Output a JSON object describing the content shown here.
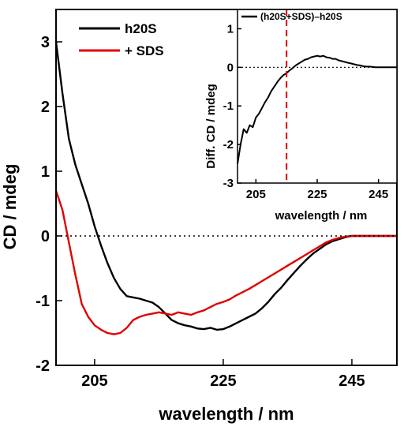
{
  "chart_data": [
    {
      "type": "line",
      "xlabel": "wavelength / nm",
      "ylabel": "CD / mdeg",
      "xlim": [
        199,
        252
      ],
      "ylim": [
        -2,
        3.5
      ],
      "x_ticks": [
        205,
        225,
        245
      ],
      "y_ticks": [
        3,
        2,
        1,
        0,
        -1,
        -2
      ],
      "x_tick_labels": [
        "205",
        "225",
        "245"
      ],
      "y_tick_labels": [
        "3",
        "2",
        "1",
        "0",
        "-1",
        "-2"
      ],
      "reference_line": {
        "y": 0,
        "style": "dotted"
      },
      "legend": {
        "position": "top-left"
      },
      "series": [
        {
          "name": "h20S",
          "color": "#000000",
          "x": [
            199,
            200,
            201,
            202,
            203,
            204,
            205,
            206,
            207,
            208,
            209,
            210,
            211,
            212,
            213,
            214,
            215,
            216,
            217,
            218,
            219,
            220,
            221,
            222,
            223,
            224,
            225,
            226,
            227,
            228,
            229,
            230,
            231,
            232,
            233,
            234,
            235,
            236,
            237,
            238,
            239,
            240,
            241,
            242,
            243,
            244,
            245,
            246,
            248,
            250,
            252
          ],
          "y": [
            3.0,
            2.2,
            1.5,
            1.1,
            0.8,
            0.5,
            0.15,
            -0.15,
            -0.42,
            -0.65,
            -0.82,
            -0.93,
            -0.95,
            -0.97,
            -1.0,
            -1.03,
            -1.1,
            -1.2,
            -1.3,
            -1.35,
            -1.38,
            -1.4,
            -1.43,
            -1.44,
            -1.42,
            -1.45,
            -1.44,
            -1.4,
            -1.35,
            -1.3,
            -1.25,
            -1.2,
            -1.12,
            -1.02,
            -0.9,
            -0.8,
            -0.68,
            -0.57,
            -0.46,
            -0.36,
            -0.27,
            -0.2,
            -0.13,
            -0.08,
            -0.05,
            -0.02,
            0.0,
            0.0,
            0.0,
            0.0,
            0.0
          ]
        },
        {
          "name": "+ SDS",
          "color": "#e00000",
          "x": [
            199,
            200,
            201,
            202,
            203,
            204,
            205,
            206,
            207,
            208,
            209,
            210,
            211,
            212,
            213,
            214,
            215,
            216,
            217,
            218,
            219,
            220,
            221,
            222,
            223,
            224,
            225,
            226,
            227,
            228,
            229,
            230,
            231,
            232,
            233,
            234,
            235,
            236,
            237,
            238,
            239,
            240,
            241,
            242,
            243,
            244,
            245,
            246,
            248,
            250,
            252
          ],
          "y": [
            0.7,
            0.4,
            -0.1,
            -0.6,
            -1.05,
            -1.25,
            -1.38,
            -1.45,
            -1.5,
            -1.52,
            -1.5,
            -1.42,
            -1.3,
            -1.25,
            -1.22,
            -1.2,
            -1.18,
            -1.2,
            -1.22,
            -1.18,
            -1.2,
            -1.22,
            -1.18,
            -1.15,
            -1.1,
            -1.05,
            -1.02,
            -0.98,
            -0.92,
            -0.87,
            -0.82,
            -0.76,
            -0.7,
            -0.64,
            -0.58,
            -0.52,
            -0.46,
            -0.4,
            -0.34,
            -0.28,
            -0.22,
            -0.16,
            -0.1,
            -0.06,
            -0.03,
            -0.01,
            0.0,
            0.0,
            0.0,
            0.0,
            0.0
          ]
        }
      ]
    },
    {
      "type": "line",
      "xlabel": "wavelength / nm",
      "ylabel": "Diff. CD / mdeg",
      "xlim": [
        199,
        251
      ],
      "ylim": [
        -3,
        1.5
      ],
      "x_ticks": [
        205,
        225,
        245
      ],
      "y_ticks": [
        1,
        0,
        -1,
        -2,
        -3
      ],
      "x_tick_labels": [
        "205",
        "225",
        "245"
      ],
      "y_tick_labels": [
        "1",
        "0",
        "-1",
        "-2",
        "-3"
      ],
      "reference_line": {
        "y": 0,
        "style": "dotted"
      },
      "marker_line": {
        "x": 215,
        "color": "#e00000",
        "style": "dashed"
      },
      "legend": {
        "position": "top"
      },
      "series": [
        {
          "name": "(h20S+SDS)–h20S",
          "color": "#000000",
          "x": [
            199,
            200,
            201,
            202,
            203,
            204,
            205,
            206,
            207,
            208,
            209,
            210,
            211,
            212,
            213,
            214,
            215,
            216,
            217,
            218,
            219,
            220,
            221,
            222,
            223,
            224,
            225,
            226,
            227,
            228,
            229,
            230,
            231,
            232,
            233,
            234,
            235,
            236,
            237,
            238,
            239,
            240,
            241,
            242,
            243,
            244,
            245,
            246,
            248,
            250,
            251
          ],
          "y": [
            -2.5,
            -2.0,
            -1.6,
            -1.7,
            -1.5,
            -1.55,
            -1.3,
            -1.2,
            -1.05,
            -0.9,
            -0.78,
            -0.62,
            -0.5,
            -0.38,
            -0.28,
            -0.2,
            -0.15,
            -0.08,
            -0.02,
            0.05,
            0.1,
            0.15,
            0.2,
            0.22,
            0.26,
            0.28,
            0.3,
            0.28,
            0.3,
            0.26,
            0.25,
            0.22,
            0.22,
            0.18,
            0.16,
            0.14,
            0.12,
            0.1,
            0.08,
            0.06,
            0.05,
            0.03,
            0.02,
            0.02,
            0.01,
            0.0,
            0.0,
            0.0,
            0.0,
            0.0,
            0.0
          ]
        }
      ]
    }
  ]
}
